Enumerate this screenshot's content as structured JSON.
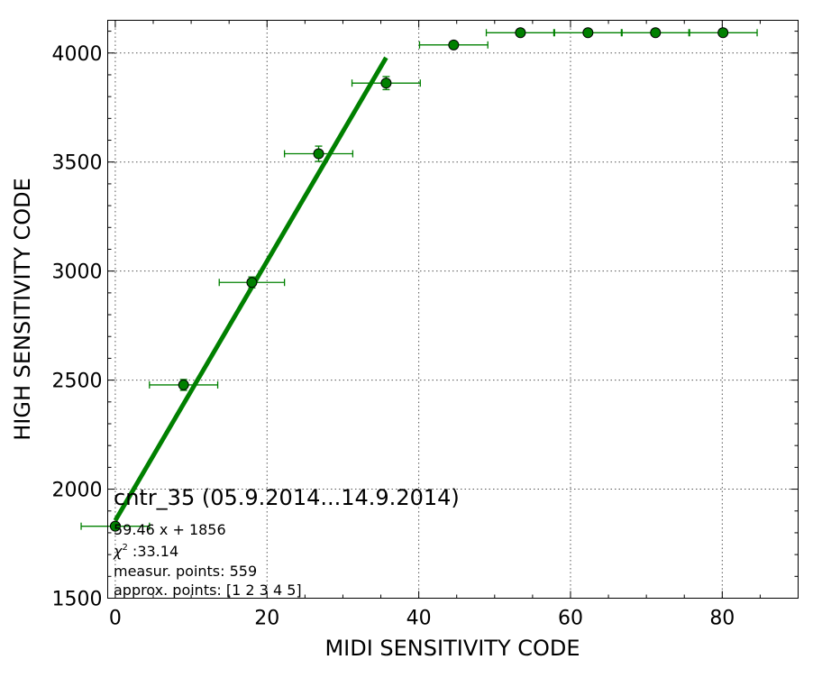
{
  "chart_data": {
    "type": "scatter",
    "xlabel": "MIDI SENSITIVITY CODE",
    "ylabel": "HIGH SENSITIVITY CODE",
    "xlim": [
      -1,
      90
    ],
    "ylim": [
      1500,
      4150
    ],
    "x_ticks": [
      0,
      20,
      40,
      60,
      80
    ],
    "y_ticks": [
      1500,
      2000,
      2500,
      3000,
      3500,
      4000
    ],
    "grid": true,
    "points": [
      {
        "x": 0.0,
        "y": 1830,
        "xerr": 4.5,
        "yerr": 0
      },
      {
        "x": 9.0,
        "y": 2478,
        "xerr": 4.5,
        "yerr": 25
      },
      {
        "x": 18.0,
        "y": 2948,
        "xerr": 4.3,
        "yerr": 25
      },
      {
        "x": 26.8,
        "y": 3538,
        "xerr": 4.5,
        "yerr": 35
      },
      {
        "x": 35.7,
        "y": 3862,
        "xerr": 4.5,
        "yerr": 30
      },
      {
        "x": 44.6,
        "y": 4037,
        "xerr": 4.5,
        "yerr": 0
      },
      {
        "x": 53.4,
        "y": 4093,
        "xerr": 4.5,
        "yerr": 0
      },
      {
        "x": 62.3,
        "y": 4093,
        "xerr": 4.5,
        "yerr": 0
      },
      {
        "x": 71.2,
        "y": 4093,
        "xerr": 4.5,
        "yerr": 0
      },
      {
        "x": 80.1,
        "y": 4093,
        "xerr": 4.5,
        "yerr": 0
      }
    ],
    "fit_line": {
      "x": [
        0,
        35.7
      ],
      "slope": 59.46,
      "intercept": 1856
    },
    "colors": {
      "series": "#008000",
      "marker_edge": "#000000",
      "grid": "#555555"
    },
    "annotations": {
      "title": "cntr_35 (05.9.2014...14.9.2014)",
      "equation": "59.46 x + 1856",
      "chi2_symbol": "χ",
      "chi2_exp": "2",
      "chi2_value": " :33.14",
      "measur_points": "measur. points: 559",
      "approx_points": "approx. points: [1 2 3 4 5]"
    }
  }
}
